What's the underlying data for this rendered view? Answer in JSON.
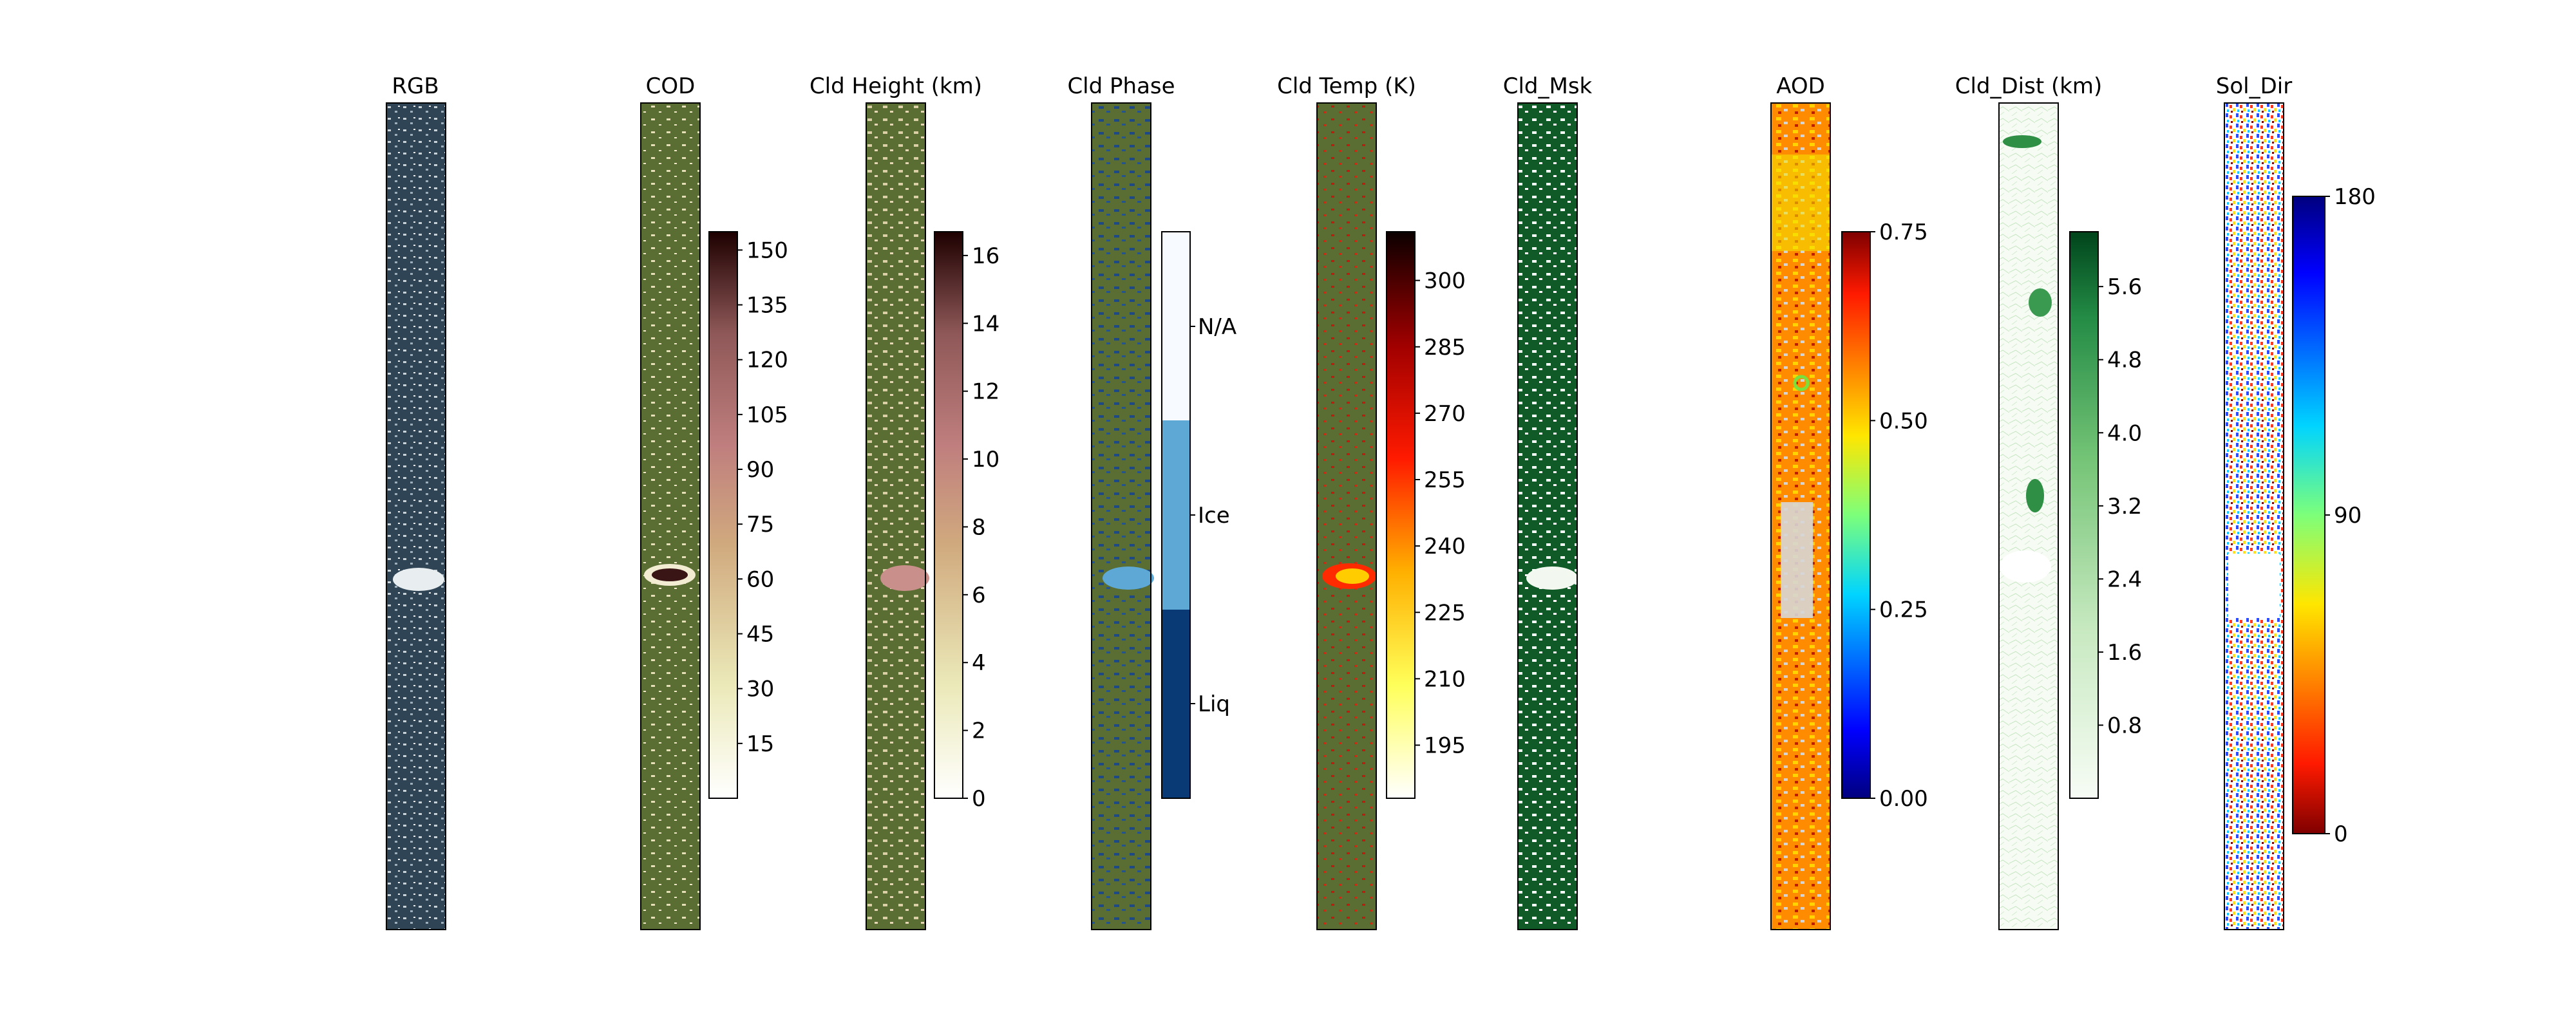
{
  "chart_data": [
    {
      "type": "heatmap",
      "title": "RGB",
      "colorbar": null
    },
    {
      "type": "heatmap",
      "title": "COD",
      "colorbar": {
        "ticks": [
          "15",
          "30",
          "45",
          "60",
          "75",
          "90",
          "105",
          "120",
          "135",
          "150"
        ],
        "range": [
          0,
          155
        ],
        "colormap": "pink_r"
      }
    },
    {
      "type": "heatmap",
      "title": "Cld Height (km)",
      "colorbar": {
        "ticks": [
          "0",
          "2",
          "4",
          "6",
          "8",
          "10",
          "12",
          "14",
          "16"
        ],
        "range": [
          0,
          16.7
        ],
        "colormap": "pink_r"
      }
    },
    {
      "type": "heatmap",
      "title": "Cld Phase",
      "colorbar": {
        "categories": [
          "Liq",
          "Ice",
          "N/A"
        ],
        "colors": [
          "#0a3a75",
          "#5ea8d5",
          "#f7fbff"
        ]
      }
    },
    {
      "type": "heatmap",
      "title": "Cld Temp (K)",
      "colorbar": {
        "ticks": [
          "195",
          "210",
          "225",
          "240",
          "255",
          "270",
          "285",
          "300"
        ],
        "range": [
          183,
          311
        ],
        "colormap": "hot_r"
      }
    },
    {
      "type": "heatmap",
      "title": "Cld_Msk",
      "colorbar": null
    },
    {
      "type": "heatmap",
      "title": "AOD",
      "colorbar": {
        "ticks": [
          "0.00",
          "0.25",
          "0.50",
          "0.75"
        ],
        "range": [
          0,
          0.75
        ],
        "colormap": "jet"
      }
    },
    {
      "type": "heatmap",
      "title": "Cld_Dist (km)",
      "colorbar": {
        "ticks": [
          "0.8",
          "1.6",
          "2.4",
          "3.2",
          "4.0",
          "4.8",
          "5.6"
        ],
        "range": [
          0,
          6.2
        ],
        "colormap": "Greens"
      }
    },
    {
      "type": "heatmap",
      "title": "Sol_Dir",
      "colorbar": {
        "ticks": [
          "0",
          "90",
          "180"
        ],
        "range": [
          0,
          180
        ],
        "colormap": "jet_r"
      }
    }
  ]
}
